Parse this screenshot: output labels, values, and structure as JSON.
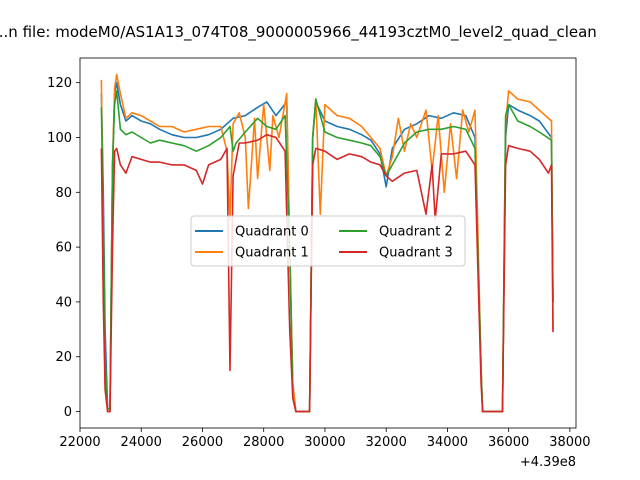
{
  "chart_data": {
    "type": "line",
    "title": "...n file: modeM0/AS1A13_074T08_9000005966_44193cztM0_level2_quad_clean",
    "xlabel": "",
    "ylabel": "",
    "x_offset_label": "+4.39e8",
    "xlim": [
      22000,
      38200
    ],
    "ylim": [
      -6,
      129
    ],
    "x_ticks": [
      22000,
      24000,
      26000,
      28000,
      30000,
      32000,
      34000,
      36000,
      38000
    ],
    "y_ticks": [
      0,
      20,
      40,
      60,
      80,
      100,
      120
    ],
    "x_tick_labels": [
      "22000",
      "24000",
      "26000",
      "28000",
      "30000",
      "32000",
      "34000",
      "36000",
      "38000"
    ],
    "y_tick_labels": [
      "0",
      "20",
      "40",
      "60",
      "80",
      "100",
      "120"
    ],
    "grid": false,
    "legend_placement": "center-left, two columns",
    "series": [
      {
        "name": "Quadrant 0",
        "color": "#1f77b4",
        "points": [
          [
            22700,
            116
          ],
          [
            22760,
            80
          ],
          [
            22820,
            30
          ],
          [
            22900,
            1
          ],
          [
            22980,
            1
          ],
          [
            23060,
            88
          ],
          [
            23130,
            116
          ],
          [
            23200,
            120
          ],
          [
            23320,
            112
          ],
          [
            23500,
            106
          ],
          [
            23700,
            108
          ],
          [
            24000,
            106
          ],
          [
            24300,
            105
          ],
          [
            24600,
            103
          ],
          [
            25000,
            101
          ],
          [
            25400,
            100
          ],
          [
            25800,
            100
          ],
          [
            26200,
            101
          ],
          [
            26600,
            103
          ],
          [
            27000,
            107
          ],
          [
            27400,
            108
          ],
          [
            27800,
            111
          ],
          [
            28100,
            113
          ],
          [
            28400,
            108
          ],
          [
            28750,
            113
          ],
          [
            28850,
            60
          ],
          [
            28950,
            10
          ],
          [
            29050,
            0
          ],
          [
            29500,
            0
          ],
          [
            29600,
            100
          ],
          [
            29700,
            113
          ],
          [
            30000,
            106
          ],
          [
            30400,
            104
          ],
          [
            30800,
            103
          ],
          [
            31200,
            101
          ],
          [
            31500,
            99
          ],
          [
            31800,
            94
          ],
          [
            32000,
            82
          ],
          [
            32200,
            96
          ],
          [
            32600,
            103
          ],
          [
            33000,
            105
          ],
          [
            33400,
            108
          ],
          [
            33800,
            107
          ],
          [
            34200,
            109
          ],
          [
            34600,
            108
          ],
          [
            34900,
            100
          ],
          [
            35100,
            15
          ],
          [
            35150,
            0
          ],
          [
            35800,
            0
          ],
          [
            35900,
            100
          ],
          [
            36000,
            112
          ],
          [
            36300,
            110
          ],
          [
            36700,
            108
          ],
          [
            37000,
            106
          ],
          [
            37400,
            100
          ],
          [
            37450,
            40
          ]
        ]
      },
      {
        "name": "Quadrant 1",
        "color": "#ff7f0e",
        "points": [
          [
            22700,
            121
          ],
          [
            22760,
            60
          ],
          [
            22820,
            10
          ],
          [
            22900,
            0
          ],
          [
            22980,
            0
          ],
          [
            23060,
            90
          ],
          [
            23130,
            118
          ],
          [
            23200,
            123
          ],
          [
            23320,
            116
          ],
          [
            23500,
            107
          ],
          [
            23700,
            109
          ],
          [
            24000,
            108
          ],
          [
            24300,
            106
          ],
          [
            24600,
            104
          ],
          [
            25000,
            104
          ],
          [
            25400,
            102
          ],
          [
            25800,
            103
          ],
          [
            26200,
            104
          ],
          [
            26600,
            104
          ],
          [
            26800,
            95
          ],
          [
            26900,
            70
          ],
          [
            27000,
            105
          ],
          [
            27200,
            109
          ],
          [
            27400,
            100
          ],
          [
            27500,
            74
          ],
          [
            27700,
            107
          ],
          [
            27800,
            85
          ],
          [
            28000,
            112
          ],
          [
            28200,
            88
          ],
          [
            28300,
            108
          ],
          [
            28500,
            100
          ],
          [
            28750,
            116
          ],
          [
            28850,
            60
          ],
          [
            28950,
            10
          ],
          [
            29050,
            0
          ],
          [
            29500,
            0
          ],
          [
            29600,
            100
          ],
          [
            29700,
            114
          ],
          [
            29850,
            72
          ],
          [
            30000,
            112
          ],
          [
            30400,
            108
          ],
          [
            30800,
            107
          ],
          [
            31200,
            104
          ],
          [
            31500,
            100
          ],
          [
            31800,
            96
          ],
          [
            32000,
            86
          ],
          [
            32200,
            93
          ],
          [
            32400,
            107
          ],
          [
            32600,
            95
          ],
          [
            32800,
            105
          ],
          [
            33000,
            100
          ],
          [
            33300,
            110
          ],
          [
            33500,
            88
          ],
          [
            33700,
            108
          ],
          [
            33900,
            80
          ],
          [
            34100,
            105
          ],
          [
            34300,
            85
          ],
          [
            34500,
            110
          ],
          [
            34700,
            102
          ],
          [
            34900,
            110
          ],
          [
            35100,
            15
          ],
          [
            35150,
            0
          ],
          [
            35800,
            0
          ],
          [
            35900,
            105
          ],
          [
            36000,
            117
          ],
          [
            36300,
            114
          ],
          [
            36700,
            113
          ],
          [
            37000,
            110
          ],
          [
            37400,
            106
          ],
          [
            37450,
            30
          ]
        ]
      },
      {
        "name": "Quadrant 2",
        "color": "#2ca02c",
        "points": [
          [
            22700,
            111
          ],
          [
            22760,
            70
          ],
          [
            22820,
            20
          ],
          [
            22900,
            1
          ],
          [
            22980,
            1
          ],
          [
            23060,
            90
          ],
          [
            23130,
            112
          ],
          [
            23200,
            117
          ],
          [
            23320,
            103
          ],
          [
            23500,
            101
          ],
          [
            23700,
            102
          ],
          [
            24000,
            100
          ],
          [
            24300,
            98
          ],
          [
            24600,
            99
          ],
          [
            25000,
            98
          ],
          [
            25400,
            97
          ],
          [
            25800,
            95
          ],
          [
            26200,
            97
          ],
          [
            26600,
            100
          ],
          [
            26900,
            104
          ],
          [
            27000,
            95
          ],
          [
            27100,
            98
          ],
          [
            27400,
            102
          ],
          [
            27800,
            107
          ],
          [
            28100,
            104
          ],
          [
            28400,
            103
          ],
          [
            28700,
            108
          ],
          [
            28850,
            60
          ],
          [
            28950,
            5
          ],
          [
            29050,
            0
          ],
          [
            29500,
            0
          ],
          [
            29600,
            100
          ],
          [
            29700,
            114
          ],
          [
            30000,
            102
          ],
          [
            30400,
            100
          ],
          [
            30800,
            99
          ],
          [
            31200,
            98
          ],
          [
            31500,
            97
          ],
          [
            31800,
            93
          ],
          [
            32000,
            86
          ],
          [
            32200,
            90
          ],
          [
            32600,
            98
          ],
          [
            33000,
            102
          ],
          [
            33400,
            103
          ],
          [
            33800,
            103
          ],
          [
            34200,
            104
          ],
          [
            34600,
            103
          ],
          [
            34900,
            96
          ],
          [
            35100,
            15
          ],
          [
            35150,
            0
          ],
          [
            35800,
            0
          ],
          [
            35900,
            108
          ],
          [
            36000,
            112
          ],
          [
            36300,
            106
          ],
          [
            36700,
            104
          ],
          [
            37000,
            102
          ],
          [
            37400,
            99
          ],
          [
            37450,
            40
          ]
        ]
      },
      {
        "name": "Quadrant 3",
        "color": "#d62728",
        "points": [
          [
            22700,
            96
          ],
          [
            22760,
            40
          ],
          [
            22820,
            8
          ],
          [
            22900,
            0
          ],
          [
            22980,
            0
          ],
          [
            23060,
            60
          ],
          [
            23130,
            95
          ],
          [
            23200,
            96
          ],
          [
            23320,
            90
          ],
          [
            23500,
            87
          ],
          [
            23700,
            93
          ],
          [
            24000,
            92
          ],
          [
            24300,
            91
          ],
          [
            24600,
            91
          ],
          [
            25000,
            90
          ],
          [
            25400,
            90
          ],
          [
            25800,
            88
          ],
          [
            26000,
            83
          ],
          [
            26200,
            90
          ],
          [
            26600,
            92
          ],
          [
            26800,
            96
          ],
          [
            26900,
            15
          ],
          [
            27000,
            86
          ],
          [
            27200,
            98
          ],
          [
            27400,
            98
          ],
          [
            27800,
            99
          ],
          [
            28100,
            101
          ],
          [
            28400,
            100
          ],
          [
            28700,
            95
          ],
          [
            28850,
            30
          ],
          [
            28950,
            5
          ],
          [
            29050,
            0
          ],
          [
            29500,
            0
          ],
          [
            29600,
            90
          ],
          [
            29700,
            96
          ],
          [
            30000,
            95
          ],
          [
            30400,
            92
          ],
          [
            30800,
            94
          ],
          [
            31200,
            93
          ],
          [
            31500,
            91
          ],
          [
            31800,
            90
          ],
          [
            32000,
            86
          ],
          [
            32200,
            84
          ],
          [
            32600,
            87
          ],
          [
            33000,
            88
          ],
          [
            33300,
            72
          ],
          [
            33500,
            90
          ],
          [
            33600,
            70
          ],
          [
            33800,
            94
          ],
          [
            34200,
            94
          ],
          [
            34600,
            95
          ],
          [
            34900,
            90
          ],
          [
            35100,
            10
          ],
          [
            35150,
            0
          ],
          [
            35800,
            0
          ],
          [
            35900,
            90
          ],
          [
            36000,
            97
          ],
          [
            36300,
            96
          ],
          [
            36700,
            95
          ],
          [
            37000,
            92
          ],
          [
            37300,
            87
          ],
          [
            37400,
            90
          ],
          [
            37450,
            29
          ]
        ]
      }
    ]
  }
}
